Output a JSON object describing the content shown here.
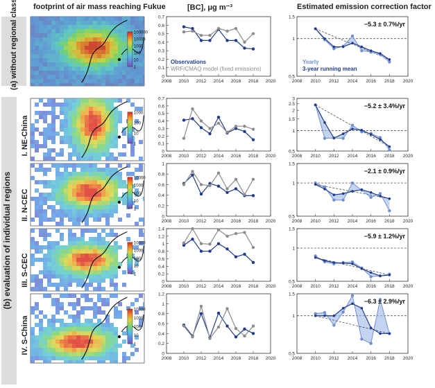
{
  "headers": {
    "col1": "footprint of air mass reaching Fukue",
    "col2": "[BC], μg m⁻³",
    "col3": "Estimated emission correction factor"
  },
  "groups": {
    "a": "(a) without regional classification",
    "b": "(b) evaluation of individual regions"
  },
  "map_colorbar_ticks": {
    "a": [
      "100000",
      "10000",
      "1000",
      "100",
      "10",
      "1"
    ],
    "r1": [
      "1000",
      "100",
      "10",
      "1"
    ],
    "r2": [
      "10000",
      "1000",
      "100",
      "10",
      "1"
    ],
    "r3": [
      "10000",
      "1000",
      "100",
      "10",
      "1"
    ],
    "r4": [
      "10000",
      "1000",
      "100",
      "10",
      "1"
    ]
  },
  "chart_data": [
    {
      "id": "a",
      "row_label": "",
      "type": "line",
      "title": "[BC], μg m⁻³",
      "x": [
        2010,
        2011,
        2012,
        2013,
        2014,
        2015,
        2016,
        2017,
        2018
      ],
      "xlim": [
        2008,
        2020
      ],
      "xticks": [
        2008,
        2010,
        2012,
        2014,
        2016,
        2018,
        2020
      ],
      "ylim": [
        0,
        0.7
      ],
      "yticks": [
        0,
        0.1,
        0.2,
        0.3,
        0.4,
        0.5,
        0.6,
        0.7
      ],
      "series": [
        {
          "name": "Observations",
          "color": "#1f3a8c",
          "values": [
            0.58,
            0.56,
            0.42,
            0.42,
            0.55,
            0.42,
            0.42,
            0.33,
            0.32
          ]
        },
        {
          "name": "WRF/CMAQ model (fixed emissions)",
          "color": "#8c8c8c",
          "values": [
            0.52,
            0.53,
            0.48,
            0.48,
            0.56,
            0.53,
            0.56,
            0.4,
            0.5
          ]
        }
      ],
      "legend": [
        "Observations",
        "WRF/CMAQ model (fixed emissions)"
      ]
    },
    {
      "id": "a-ecf",
      "row_label": "",
      "type": "line",
      "scale": "log",
      "title": "Estimated emission correction factor",
      "x": [
        2010,
        2011,
        2012,
        2013,
        2014,
        2015,
        2016,
        2017,
        2018
      ],
      "xlim": [
        2008,
        2020
      ],
      "xticks": [
        2008,
        2010,
        2012,
        2014,
        2016,
        2018,
        2020
      ],
      "ylim": [
        0.5,
        1.5
      ],
      "yticks": [
        0.5,
        1,
        1.5
      ],
      "yearly": [
        1.2,
        0.98,
        0.83,
        0.87,
        1.05,
        0.8,
        0.78,
        0.75,
        0.65
      ],
      "running_mean": [
        1.2,
        1.0,
        0.86,
        0.86,
        0.92,
        0.86,
        0.8,
        0.76,
        0.68
      ],
      "trend_label": "−5.3 ± 0.7%/yr",
      "legend": [
        "Yearly",
        "3-year running mean"
      ]
    },
    {
      "id": "r1",
      "row_label": "I. NE-China",
      "type": "line",
      "x": [
        2010,
        2011,
        2012,
        2013,
        2014,
        2015,
        2016,
        2017,
        2018
      ],
      "xlim": [
        2008,
        2020
      ],
      "xticks": [
        2008,
        2010,
        2012,
        2014,
        2016,
        2018,
        2020
      ],
      "ylim": [
        0,
        0.7
      ],
      "yticks": [
        0,
        0.1,
        0.2,
        0.3,
        0.4,
        0.5,
        0.6,
        0.7
      ],
      "series": [
        {
          "name": "Observations",
          "color": "#1f3a8c",
          "values": [
            0.41,
            0.43,
            0.31,
            0.23,
            0.45,
            0.24,
            0.3,
            0.26,
            0.15
          ]
        },
        {
          "name": "WRF/CMAQ model (fixed emissions)",
          "color": "#8c8c8c",
          "values": [
            0.17,
            0.56,
            0.4,
            0.3,
            0.37,
            0.25,
            0.33,
            0.33,
            0.29
          ]
        }
      ]
    },
    {
      "id": "r1-ecf",
      "row_label": "I. NE-China",
      "type": "line",
      "scale": "log",
      "x": [
        2010,
        2011,
        2012,
        2013,
        2014,
        2015,
        2016,
        2017,
        2018
      ],
      "xlim": [
        2008,
        2020
      ],
      "xticks": [
        2008,
        2010,
        2012,
        2014,
        2016,
        2018,
        2020
      ],
      "ylim": [
        0.5,
        3
      ],
      "yticks": [
        0.5,
        1,
        1.5,
        2,
        2.5,
        3
      ],
      "yearly": [
        2.4,
        0.77,
        0.78,
        0.77,
        1.2,
        0.96,
        0.91,
        0.79,
        0.52
      ],
      "running_mean": [
        2.4,
        1.32,
        0.78,
        0.9,
        1.06,
        1.02,
        0.88,
        0.74,
        0.58
      ],
      "trend_label": "−5.2 ± 3.4%/yr"
    },
    {
      "id": "r2",
      "row_label": "II. N-CEC",
      "type": "line",
      "x": [
        2010,
        2011,
        2012,
        2013,
        2014,
        2015,
        2016,
        2017,
        2018
      ],
      "xlim": [
        2008,
        2020
      ],
      "xticks": [
        2008,
        2010,
        2012,
        2014,
        2016,
        2018,
        2020
      ],
      "ylim": [
        0,
        1
      ],
      "yticks": [
        0,
        0.2,
        0.4,
        0.6,
        0.8,
        1
      ],
      "series": [
        {
          "name": "Observations",
          "color": "#1f3a8c",
          "values": [
            0.62,
            0.78,
            0.42,
            0.62,
            0.57,
            0.45,
            0.52,
            0.39,
            0.39
          ]
        },
        {
          "name": "WRF/CMAQ model (fixed emissions)",
          "color": "#8c8c8c",
          "values": [
            0.6,
            0.85,
            0.6,
            0.58,
            0.82,
            0.52,
            0.7,
            0.41,
            0.7
          ]
        }
      ]
    },
    {
      "id": "r2-ecf",
      "row_label": "II. N-CEC",
      "type": "line",
      "scale": "log",
      "x": [
        2010,
        2011,
        2012,
        2013,
        2014,
        2015,
        2016,
        2017,
        2018
      ],
      "xlim": [
        2008,
        2020
      ],
      "xticks": [
        2008,
        2010,
        2012,
        2014,
        2016,
        2018,
        2020
      ],
      "ylim": [
        0.5,
        1.5
      ],
      "yticks": [
        0.5,
        1,
        1.5
      ],
      "yearly": [
        1.0,
        0.92,
        0.7,
        0.7,
        1.0,
        0.86,
        0.74,
        0.8,
        0.56
      ],
      "running_mean": [
        0.97,
        0.88,
        0.78,
        0.8,
        0.84,
        0.87,
        0.82,
        0.76,
        0.72
      ],
      "trend_label": "−2.1 ± 0.9%/yr"
    },
    {
      "id": "r3",
      "row_label": "III. S-CEC",
      "type": "line",
      "x": [
        2010,
        2011,
        2012,
        2013,
        2014,
        2015,
        2016,
        2017,
        2018
      ],
      "xlim": [
        2008,
        2020
      ],
      "xticks": [
        2008,
        2010,
        2012,
        2014,
        2016,
        2018,
        2020
      ],
      "ylim": [
        0,
        1.4
      ],
      "yticks": [
        0,
        0.2,
        0.4,
        0.6,
        0.8,
        1,
        1.2,
        1.4
      ],
      "series": [
        {
          "name": "Observations",
          "color": "#1f3a8c",
          "values": [
            0.96,
            1.12,
            0.8,
            0.8,
            1.0,
            0.86,
            0.65,
            0.72,
            0.5
          ]
        },
        {
          "name": "WRF/CMAQ model (fixed emissions)",
          "color": "#8c8c8c",
          "values": [
            1.02,
            1.4,
            1.0,
            0.99,
            1.37,
            1.2,
            1.27,
            1.3,
            0.9
          ]
        }
      ]
    },
    {
      "id": "r3-ecf",
      "row_label": "III. S-CEC",
      "type": "line",
      "scale": "log",
      "x": [
        2010,
        2011,
        2012,
        2013,
        2014,
        2015,
        2016,
        2017,
        2018
      ],
      "xlim": [
        2008,
        2020
      ],
      "xticks": [
        2008,
        2010,
        2012,
        2014,
        2016,
        2018,
        2020
      ],
      "ylim": [
        0.5,
        1.5
      ],
      "yticks": [
        0.5,
        1,
        1.5
      ],
      "yearly": [
        0.85,
        0.75,
        0.72,
        0.74,
        0.75,
        0.66,
        0.55,
        0.56,
        0.58
      ],
      "running_mean": [
        0.82,
        0.77,
        0.74,
        0.73,
        0.72,
        0.65,
        0.6,
        0.56,
        0.57
      ],
      "trend_label": "−5.9 ± 1.2%/yr"
    },
    {
      "id": "r4",
      "row_label": "IV. S-China",
      "type": "line",
      "x": [
        2010,
        2011,
        2012,
        2013,
        2014,
        2015,
        2016,
        2017,
        2018
      ],
      "xlim": [
        2008,
        2020
      ],
      "xticks": [
        2008,
        2010,
        2012,
        2014,
        2016,
        2018,
        2020
      ],
      "ylim": [
        0,
        1.2
      ],
      "yticks": [
        0,
        0.2,
        0.4,
        0.6,
        0.8,
        1,
        1.2
      ],
      "series": [
        {
          "name": "Observations",
          "color": "#1f3a8c",
          "values": [
            0.57,
            0.35,
            0.8,
            0.32,
            0.81,
            0.55,
            0.33,
            0.49,
            0.4
          ]
        },
        {
          "name": "WRF/CMAQ model (fixed emissions)",
          "color": "#8c8c8c",
          "values": [
            0.55,
            0.33,
            0.95,
            0.3,
            0.53,
            0.9,
            0.5,
            0.35,
            0.55
          ]
        }
      ]
    },
    {
      "id": "r4-ecf",
      "row_label": "IV. S-China",
      "type": "line",
      "scale": "log",
      "x": [
        2010,
        2011,
        2012,
        2013,
        2014,
        2015,
        2016,
        2017,
        2018
      ],
      "xlim": [
        2008,
        2020
      ],
      "xticks": [
        2008,
        2010,
        2012,
        2014,
        2016,
        2018,
        2020
      ],
      "ylim": [
        0.5,
        1.5
      ],
      "yticks": [
        0.5,
        1,
        1.5
      ],
      "yearly": [
        1.04,
        1.06,
        0.84,
        1.07,
        1.45,
        0.65,
        0.6,
        1.35,
        0.72
      ],
      "running_mean": [
        1.0,
        1.0,
        1.0,
        1.15,
        1.25,
        1.15,
        0.8,
        0.72,
        0.72
      ],
      "trend_label": "−6.3 ± 2.9%/yr"
    }
  ]
}
